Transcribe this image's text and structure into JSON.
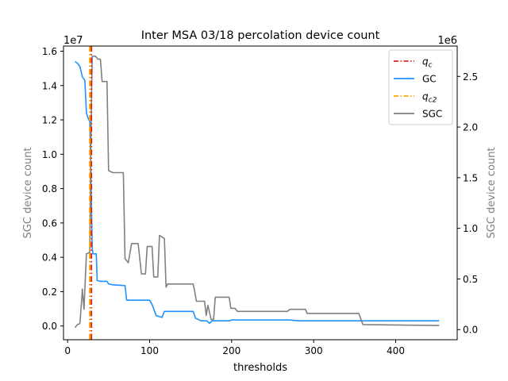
{
  "chart_data": {
    "type": "line",
    "title": "Inter MSA 03/18 percolation device count",
    "xlabel": "thresholds",
    "ylabel_left": "SGC device count",
    "ylabel_right": "SGC device count",
    "left_offset_label": "1e7",
    "right_offset_label": "1e6",
    "xlim": [
      -5,
      475
    ],
    "ylim_left": [
      -0.08,
      1.63
    ],
    "ylim_right": [
      -0.1,
      2.8
    ],
    "x_ticks": [
      0,
      100,
      200,
      300,
      400
    ],
    "x_tick_labels": [
      "0",
      "100",
      "200",
      "300",
      "400"
    ],
    "y_left_ticks": [
      0.0,
      0.2,
      0.4,
      0.6,
      0.8,
      1.0,
      1.2,
      1.4,
      1.6
    ],
    "y_left_tick_labels": [
      "0.0",
      "0.2",
      "0.4",
      "0.6",
      "0.8",
      "1.0",
      "1.2",
      "1.4",
      "1.6"
    ],
    "y_right_ticks": [
      0.0,
      0.5,
      1.0,
      1.5,
      2.0,
      2.5
    ],
    "y_right_tick_labels": [
      "0.0",
      "0.5",
      "1.0",
      "1.5",
      "2.0",
      "2.5"
    ],
    "legend_position": "top-right",
    "legend": [
      {
        "label_main": "q",
        "label_sub": "c",
        "style": "dashdot",
        "color": "#d62728"
      },
      {
        "label_main": "GC",
        "label_sub": "",
        "style": "solid",
        "color": "#1e90ff"
      },
      {
        "label_main": "q",
        "label_sub": "c2",
        "style": "dashdot",
        "color": "#ffa500"
      },
      {
        "label_main": "SGC",
        "label_sub": "",
        "style": "solid",
        "color": "#808080"
      }
    ],
    "vlines": [
      {
        "name": "q_c",
        "x": 29,
        "color": "#d62728",
        "style": "dashdot"
      },
      {
        "name": "q_c2",
        "x": 27,
        "color": "#ffa500",
        "style": "dashdot"
      }
    ],
    "series": [
      {
        "name": "GC",
        "axis": "left",
        "unit_scale": "1e7",
        "color": "#1e90ff",
        "points": [
          [
            9,
            1.54
          ],
          [
            12,
            1.53
          ],
          [
            15,
            1.51
          ],
          [
            18,
            1.45
          ],
          [
            21,
            1.43
          ],
          [
            23,
            1.24
          ],
          [
            25,
            1.21
          ],
          [
            27,
            1.19
          ],
          [
            28,
            1.0
          ],
          [
            29,
            0.72
          ],
          [
            30,
            0.45
          ],
          [
            31,
            0.42
          ],
          [
            35,
            0.42
          ],
          [
            36,
            0.265
          ],
          [
            40,
            0.26
          ],
          [
            48,
            0.26
          ],
          [
            50,
            0.245
          ],
          [
            55,
            0.24
          ],
          [
            70,
            0.235
          ],
          [
            72,
            0.15
          ],
          [
            100,
            0.15
          ],
          [
            103,
            0.125
          ],
          [
            108,
            0.06
          ],
          [
            115,
            0.05
          ],
          [
            118,
            0.085
          ],
          [
            153,
            0.085
          ],
          [
            156,
            0.045
          ],
          [
            163,
            0.03
          ],
          [
            170,
            0.03
          ],
          [
            173,
            0.015
          ],
          [
            176,
            0.03
          ],
          [
            198,
            0.03
          ],
          [
            200,
            0.035
          ],
          [
            270,
            0.035
          ],
          [
            282,
            0.03
          ],
          [
            453,
            0.03
          ]
        ]
      },
      {
        "name": "SGC",
        "axis": "right",
        "unit_scale": "1e6",
        "color": "#808080",
        "points": [
          [
            9,
            0.02
          ],
          [
            12,
            0.05
          ],
          [
            15,
            0.06
          ],
          [
            18,
            0.4
          ],
          [
            20,
            0.2
          ],
          [
            23,
            0.75
          ],
          [
            27,
            0.76
          ],
          [
            28,
            1.6
          ],
          [
            29,
            2.2
          ],
          [
            30,
            2.7
          ],
          [
            34,
            2.7
          ],
          [
            37,
            2.67
          ],
          [
            40,
            2.67
          ],
          [
            42,
            2.45
          ],
          [
            48,
            2.45
          ],
          [
            50,
            1.57
          ],
          [
            55,
            1.55
          ],
          [
            68,
            1.55
          ],
          [
            70,
            0.7
          ],
          [
            74,
            0.66
          ],
          [
            78,
            0.85
          ],
          [
            86,
            0.85
          ],
          [
            90,
            0.55
          ],
          [
            95,
            0.55
          ],
          [
            97,
            0.82
          ],
          [
            103,
            0.82
          ],
          [
            105,
            0.52
          ],
          [
            110,
            0.52
          ],
          [
            112,
            0.93
          ],
          [
            118,
            0.9
          ],
          [
            120,
            0.42
          ],
          [
            122,
            0.45
          ],
          [
            153,
            0.45
          ],
          [
            155,
            0.38
          ],
          [
            157,
            0.28
          ],
          [
            167,
            0.28
          ],
          [
            169,
            0.14
          ],
          [
            171,
            0.24
          ],
          [
            175,
            0.1
          ],
          [
            178,
            0.1
          ],
          [
            180,
            0.32
          ],
          [
            197,
            0.32
          ],
          [
            199,
            0.21
          ],
          [
            204,
            0.21
          ],
          [
            207,
            0.18
          ],
          [
            268,
            0.18
          ],
          [
            271,
            0.2
          ],
          [
            290,
            0.2
          ],
          [
            292,
            0.16
          ],
          [
            355,
            0.16
          ],
          [
            360,
            0.05
          ],
          [
            453,
            0.04
          ]
        ]
      }
    ]
  }
}
